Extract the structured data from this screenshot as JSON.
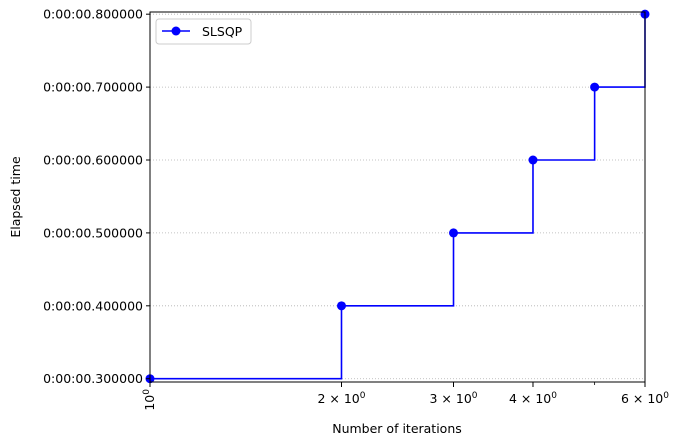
{
  "chart_data": {
    "type": "line",
    "step": "post",
    "xscale": "log",
    "title": "",
    "xlabel": "Number of iterations",
    "ylabel": "Elapsed time",
    "xlim": [
      1,
      6
    ],
    "ylim": [
      0.2955,
      0.803
    ],
    "grid": {
      "y": true,
      "x": false,
      "style": "dotted"
    },
    "legend": {
      "position": "top-left"
    },
    "x_ticks": [
      {
        "value": 1,
        "base": "10",
        "exp": "0",
        "rotated": true
      },
      {
        "value": 2,
        "coef": "2",
        "base": "10",
        "exp": "0"
      },
      {
        "value": 3,
        "coef": "3",
        "base": "10",
        "exp": "0"
      },
      {
        "value": 4,
        "coef": "4",
        "base": "10",
        "exp": "0"
      },
      {
        "value": 6,
        "coef": "6",
        "base": "10",
        "exp": "0"
      }
    ],
    "y_ticks": [
      {
        "value": 0.3,
        "label": "0:00:00.300000"
      },
      {
        "value": 0.4,
        "label": "0:00:00.400000"
      },
      {
        "value": 0.5,
        "label": "0:00:00.500000"
      },
      {
        "value": 0.6,
        "label": "0:00:00.600000"
      },
      {
        "value": 0.7,
        "label": "0:00:00.700000"
      },
      {
        "value": 0.8,
        "label": "0:00:00.800000"
      }
    ],
    "series": [
      {
        "name": "SLSQP",
        "color": "#0000ff",
        "marker": "circle",
        "x": [
          1,
          2,
          3,
          4,
          5,
          6
        ],
        "y": [
          0.3,
          0.4,
          0.5,
          0.6,
          0.7,
          0.8
        ]
      }
    ]
  }
}
